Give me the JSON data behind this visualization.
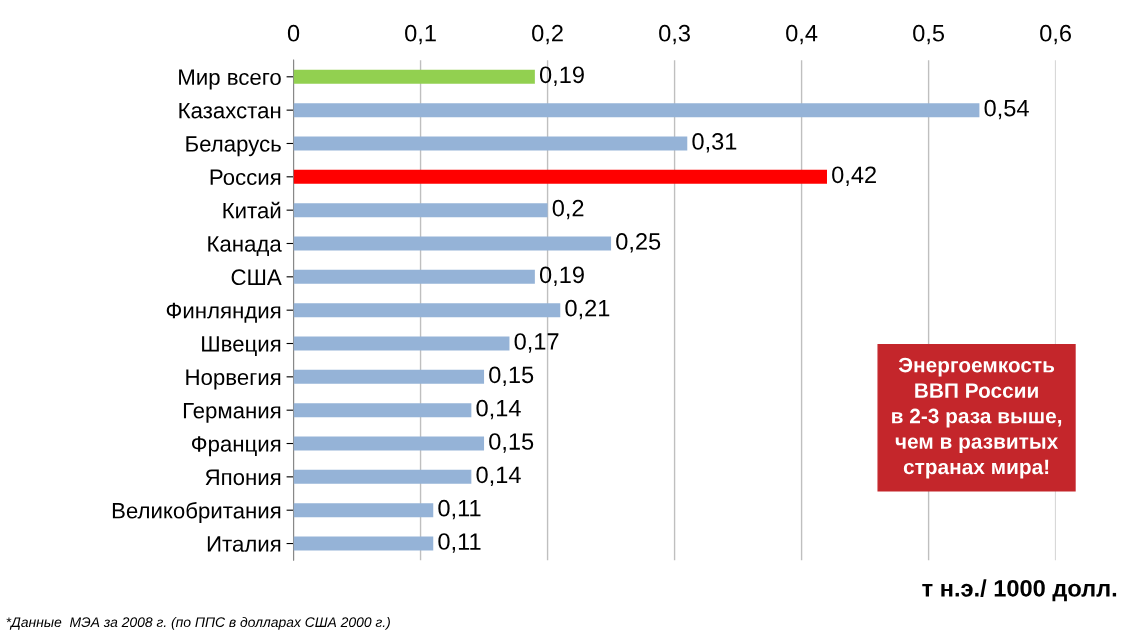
{
  "chart_data": {
    "type": "bar",
    "orientation": "horizontal",
    "categories": [
      "Мир всего",
      "Казахстан",
      "Беларусь",
      "Россия",
      "Китай",
      "Канада",
      "США",
      "Финляндия",
      "Швеция",
      "Норвегия",
      "Германия",
      "Франция",
      "Япония",
      "Великобритания",
      "Италия"
    ],
    "values": [
      0.19,
      0.54,
      0.31,
      0.42,
      0.2,
      0.25,
      0.19,
      0.21,
      0.17,
      0.15,
      0.14,
      0.15,
      0.14,
      0.11,
      0.11
    ],
    "value_labels": [
      "0,19",
      "0,54",
      "0,31",
      "0,42",
      "0,2",
      "0,25",
      "0,19",
      "0,21",
      "0,17",
      "0,15",
      "0,14",
      "0,15",
      "0,14",
      "0,11",
      "0,11"
    ],
    "colors": [
      "#92d050",
      "#95b3d7",
      "#95b3d7",
      "#ff0000",
      "#95b3d7",
      "#95b3d7",
      "#95b3d7",
      "#95b3d7",
      "#95b3d7",
      "#95b3d7",
      "#95b3d7",
      "#95b3d7",
      "#95b3d7",
      "#95b3d7",
      "#95b3d7"
    ],
    "xlim": [
      0,
      0.6
    ],
    "xticks": [
      0,
      {
        "value": 0.1,
        "label": "0,1"
      },
      {
        "value": 0.2,
        "label": "0,2"
      },
      {
        "value": 0.3,
        "label": "0,3"
      },
      {
        "value": 0.4,
        "label": "0,4"
      },
      {
        "value": 0.5,
        "label": "0,5"
      },
      {
        "value": 0.6,
        "label": "0,6"
      }
    ],
    "grid": "x",
    "xlabel": "т н.э./ 1000 долл.",
    "annotations": [
      "Энергоемкость\nВВП России\nв 2-3 раза выше,\nчем в развитых\nстранах мира!",
      "*Данные  МЭА за 2008 г. (по ППС в долларах США 2000 г.)"
    ]
  }
}
